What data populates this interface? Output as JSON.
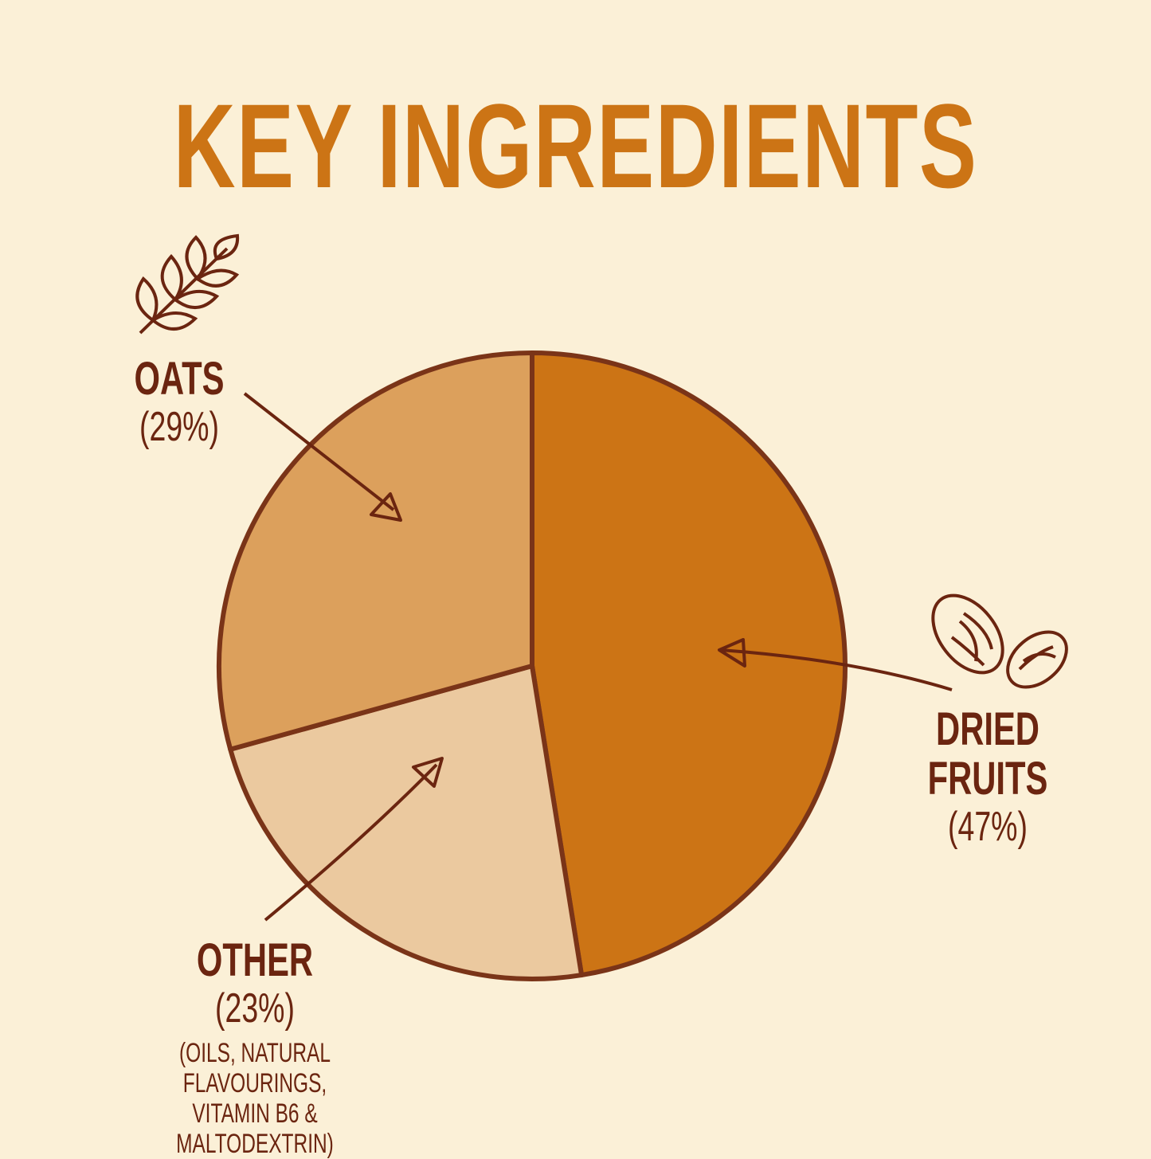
{
  "title": "KEY INGREDIENTS",
  "colors": {
    "background": "#fbf0d7",
    "title": "#cc7415",
    "outline": "#7a3418",
    "text": "#6b2510"
  },
  "chart_data": {
    "type": "pie",
    "title": "KEY INGREDIENTS",
    "start": "top",
    "direction": "clockwise",
    "slices": [
      {
        "label": "DRIED FRUITS",
        "value": 47,
        "pct_label": "(47%)",
        "color": "#cc7415",
        "icon": "raisins-icon"
      },
      {
        "label": "OTHER",
        "value": 23,
        "pct_label": "(23%)",
        "note": [
          "(OILS, NATURAL FLAVOURINGS,",
          "VITAMIN B6 & MALTODEXTRIN)"
        ],
        "color": "#ebc99f"
      },
      {
        "label": "OATS",
        "value": 29,
        "pct_label": "(29%)",
        "color": "#dca05c",
        "icon": "wheat-icon"
      }
    ]
  }
}
